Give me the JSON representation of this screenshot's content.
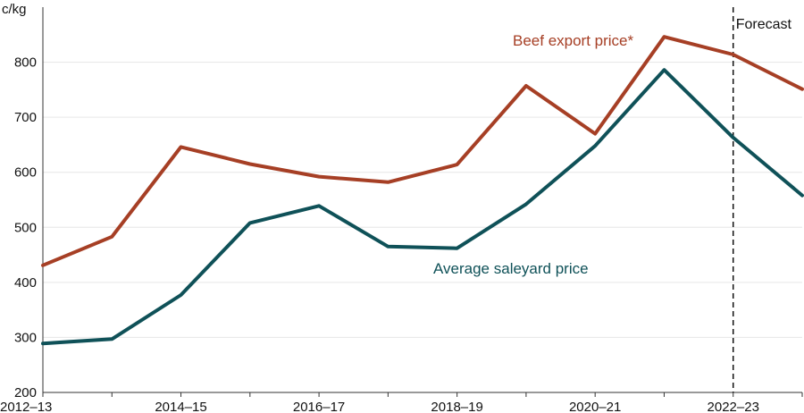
{
  "chart_data": {
    "type": "line",
    "y_unit": "c/kg",
    "ylim": [
      200,
      900
    ],
    "yticks": [
      200,
      300,
      400,
      500,
      600,
      700,
      800
    ],
    "x": [
      "2012–13",
      "2013–14",
      "2014–15",
      "2015–16",
      "2016–17",
      "2017–18",
      "2018–19",
      "2019–20",
      "2020–21",
      "2021–22",
      "2022–23",
      "2023–24"
    ],
    "x_tick_labels": [
      "2012–13",
      "",
      "2014–15",
      "",
      "2016–17",
      "",
      "2018–19",
      "",
      "2020–21",
      "",
      "2022–23",
      ""
    ],
    "grid": true,
    "forecast": {
      "label": "Forecast",
      "start": "2022–23"
    },
    "series": [
      {
        "name": "Beef export price*",
        "color": "#a63f25",
        "values": [
          431,
          483,
          646,
          615,
          592,
          582,
          614,
          757,
          670,
          846,
          814,
          751
        ]
      },
      {
        "name": "Average saleyard price",
        "color": "#0f5158",
        "values": [
          289,
          297,
          377,
          508,
          539,
          465,
          462,
          542,
          648,
          786,
          663,
          558
        ]
      }
    ]
  }
}
